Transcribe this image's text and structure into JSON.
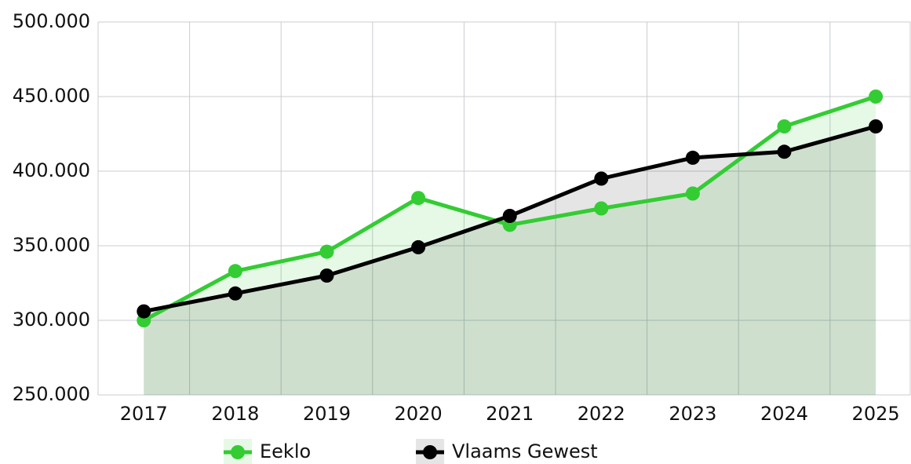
{
  "chart_data": {
    "type": "line",
    "categories": [
      "2017",
      "2018",
      "2019",
      "2020",
      "2021",
      "2022",
      "2023",
      "2024",
      "2025"
    ],
    "series": [
      {
        "name": "Eeklo",
        "color": "#33cc33",
        "values": [
          300000,
          333000,
          346000,
          382000,
          364000,
          375000,
          385000,
          430000,
          450000
        ]
      },
      {
        "name": "Vlaams Gewest",
        "color": "#000000",
        "values": [
          306000,
          318000,
          330000,
          349000,
          370000,
          395000,
          409000,
          413000,
          430000
        ]
      }
    ],
    "ylim": [
      250000,
      500000
    ],
    "yticks": [
      {
        "value": 250000,
        "label": "250.000"
      },
      {
        "value": 300000,
        "label": "300.000"
      },
      {
        "value": 350000,
        "label": "350.000"
      },
      {
        "value": 400000,
        "label": "400.000"
      },
      {
        "value": 450000,
        "label": "450.000"
      },
      {
        "value": 500000,
        "label": "500.000"
      }
    ],
    "grid": true,
    "area": true,
    "legend": "bottom"
  }
}
